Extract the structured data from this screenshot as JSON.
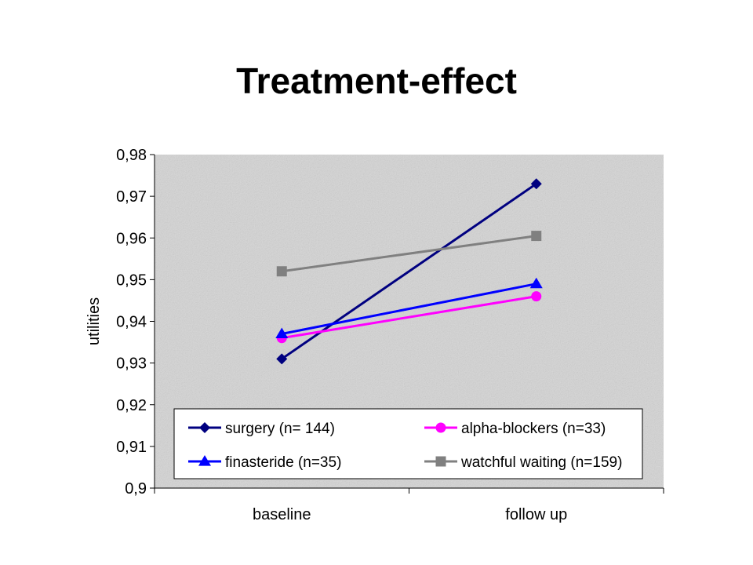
{
  "slide": {
    "title": "Treatment-effect"
  },
  "chart_data": {
    "type": "line",
    "title": "",
    "xlabel": "",
    "ylabel": "utilities",
    "categories": [
      "baseline",
      "follow up"
    ],
    "ylim": [
      0.9,
      0.98
    ],
    "yticks": [
      0.9,
      0.91,
      0.92,
      0.93,
      0.94,
      0.95,
      0.96,
      0.97,
      0.98
    ],
    "ytick_labels": [
      "0,9",
      "0,91",
      "0,92",
      "0,93",
      "0,94",
      "0,95",
      "0,96",
      "0,97",
      "0,98"
    ],
    "grid": false,
    "legend_position": "bottom-inside",
    "series": [
      {
        "name": "surgery (n= 144)",
        "values": [
          0.931,
          0.973
        ],
        "color": "#000080",
        "marker": "diamond"
      },
      {
        "name": "alpha-blockers (n=33)",
        "values": [
          0.936,
          0.946
        ],
        "color": "#FF00FF",
        "marker": "circle"
      },
      {
        "name": "finasteride (n=35)",
        "values": [
          0.937,
          0.949
        ],
        "color": "#0000FF",
        "marker": "triangle"
      },
      {
        "name": "watchful waiting (n=159)",
        "values": [
          0.952,
          0.9605
        ],
        "color": "#808080",
        "marker": "square"
      }
    ]
  }
}
